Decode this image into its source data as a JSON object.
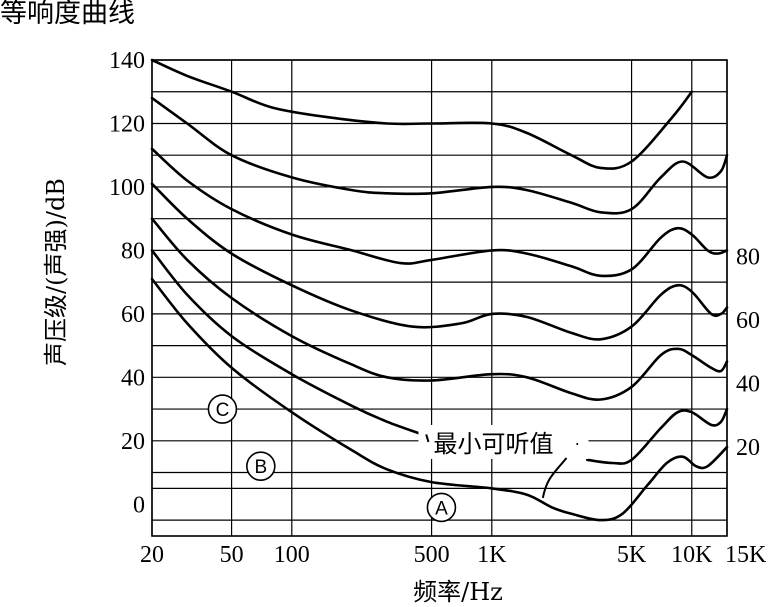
{
  "page": {
    "title": "等响度曲线"
  },
  "chart_data": {
    "type": "line",
    "title": "等响度曲线",
    "xlabel": "频率/Hz",
    "ylabel": "声压级/(声强)/dB",
    "xscale": "log",
    "xlim": [
      20,
      15000
    ],
    "ylim": [
      -10,
      140
    ],
    "grid": true,
    "x_ticks": [
      {
        "value": 20,
        "label": "20"
      },
      {
        "value": 50,
        "label": "50"
      },
      {
        "value": 100,
        "label": "100"
      },
      {
        "value": 500,
        "label": "500"
      },
      {
        "value": 1000,
        "label": "1K"
      },
      {
        "value": 5000,
        "label": "5K"
      },
      {
        "value": 10000,
        "label": "10K"
      },
      {
        "value": 15000,
        "label": "15K"
      }
    ],
    "x_gridlines": [
      20,
      50,
      100,
      500,
      1000,
      5000,
      10000,
      15000
    ],
    "y_ticks": [
      {
        "value": 0,
        "label": "0"
      },
      {
        "value": 20,
        "label": "20"
      },
      {
        "value": 40,
        "label": "40"
      },
      {
        "value": 60,
        "label": "60"
      },
      {
        "value": 80,
        "label": "80"
      },
      {
        "value": 100,
        "label": "100"
      },
      {
        "value": 120,
        "label": "120"
      },
      {
        "value": 140,
        "label": "140"
      }
    ],
    "y_gridlines": [
      -5,
      5,
      10,
      20,
      30,
      40,
      50,
      60,
      70,
      80,
      90,
      100,
      110,
      120,
      130,
      140
    ],
    "right_labels": [
      {
        "y": 78,
        "label": "80"
      },
      {
        "y": 58,
        "label": "60"
      },
      {
        "y": 38,
        "label": "40"
      },
      {
        "y": 18,
        "label": "20"
      }
    ],
    "series": [
      {
        "points": [
          [
            20,
            140
          ],
          [
            30,
            135
          ],
          [
            50,
            130
          ],
          [
            80,
            125
          ],
          [
            150,
            122
          ],
          [
            300,
            120
          ],
          [
            500,
            120
          ],
          [
            1000,
            120
          ],
          [
            1500,
            117
          ],
          [
            2500,
            110
          ],
          [
            3500,
            106
          ],
          [
            5000,
            108
          ],
          [
            8000,
            122
          ],
          [
            10000,
            130
          ]
        ]
      },
      {
        "points": [
          [
            20,
            128
          ],
          [
            30,
            120
          ],
          [
            50,
            110
          ],
          [
            100,
            103
          ],
          [
            200,
            99
          ],
          [
            300,
            98
          ],
          [
            500,
            98
          ],
          [
            1000,
            100
          ],
          [
            1500,
            99
          ],
          [
            2500,
            95
          ],
          [
            3500,
            92
          ],
          [
            5000,
            93
          ],
          [
            7000,
            103
          ],
          [
            9000,
            108
          ],
          [
            12000,
            103
          ],
          [
            14000,
            105
          ],
          [
            15000,
            110
          ]
        ]
      },
      {
        "points": [
          [
            20,
            112
          ],
          [
            30,
            102
          ],
          [
            50,
            93
          ],
          [
            100,
            85
          ],
          [
            200,
            80
          ],
          [
            350,
            76
          ],
          [
            500,
            77
          ],
          [
            1000,
            80
          ],
          [
            1500,
            79
          ],
          [
            2500,
            75
          ],
          [
            3500,
            72
          ],
          [
            5000,
            74
          ],
          [
            7000,
            84
          ],
          [
            8500,
            87
          ],
          [
            10000,
            85
          ],
          [
            12000,
            80
          ],
          [
            13500,
            79
          ],
          [
            15000,
            80
          ]
        ]
      },
      {
        "points": [
          [
            20,
            101
          ],
          [
            30,
            90
          ],
          [
            50,
            79
          ],
          [
            100,
            69
          ],
          [
            200,
            61
          ],
          [
            400,
            56
          ],
          [
            700,
            57
          ],
          [
            1000,
            60
          ],
          [
            1500,
            59
          ],
          [
            2500,
            54
          ],
          [
            3500,
            52
          ],
          [
            5000,
            56
          ],
          [
            7000,
            66
          ],
          [
            8500,
            69
          ],
          [
            10000,
            67
          ],
          [
            12500,
            60
          ],
          [
            14000,
            60
          ],
          [
            15000,
            62
          ]
        ]
      },
      {
        "points": [
          [
            20,
            90
          ],
          [
            30,
            77
          ],
          [
            50,
            65
          ],
          [
            100,
            53
          ],
          [
            200,
            44
          ],
          [
            300,
            40
          ],
          [
            500,
            39
          ],
          [
            1000,
            41
          ],
          [
            1500,
            40
          ],
          [
            2500,
            35
          ],
          [
            3500,
            33
          ],
          [
            5000,
            37
          ],
          [
            7000,
            47
          ],
          [
            8500,
            49
          ],
          [
            10000,
            47
          ],
          [
            12500,
            43
          ],
          [
            14000,
            42
          ],
          [
            15000,
            45
          ]
        ]
      },
      {
        "points": [
          [
            20,
            80
          ],
          [
            30,
            66
          ],
          [
            50,
            53
          ],
          [
            100,
            41
          ],
          [
            200,
            31
          ],
          [
            300,
            26
          ],
          [
            450,
            22
          ]
        ]
      },
      {
        "points": [
          [
            3000,
            14
          ],
          [
            4000,
            13
          ],
          [
            5000,
            14
          ],
          [
            7000,
            24
          ],
          [
            8500,
            29
          ],
          [
            10000,
            29
          ],
          [
            12500,
            25
          ],
          [
            14000,
            26
          ],
          [
            15000,
            30
          ]
        ]
      },
      {
        "points": [
          [
            20,
            71
          ],
          [
            30,
            57
          ],
          [
            50,
            43
          ],
          [
            100,
            29
          ],
          [
            200,
            17
          ],
          [
            300,
            11
          ],
          [
            500,
            7
          ],
          [
            1000,
            5
          ],
          [
            1500,
            3
          ],
          [
            2000,
            -1
          ],
          [
            2500,
            -3
          ],
          [
            3500,
            -5
          ],
          [
            4500,
            -3
          ],
          [
            6000,
            6
          ],
          [
            7500,
            13
          ],
          [
            9000,
            15
          ],
          [
            10500,
            12
          ],
          [
            12000,
            12
          ],
          [
            15000,
            18
          ]
        ]
      }
    ],
    "curve_markers": [
      {
        "label": "A",
        "x": 560,
        "y": -1
      },
      {
        "label": "B",
        "x": 70,
        "y": 12
      },
      {
        "label": "C",
        "x": 45,
        "y": 30
      }
    ],
    "annotation": {
      "text": "最小可听值",
      "x": 1080,
      "y": 19,
      "lead_left_to": [
        470,
        22
      ],
      "lead_right_to": [
        2700,
        19
      ],
      "pointer_to": [
        1800,
        2
      ]
    }
  }
}
